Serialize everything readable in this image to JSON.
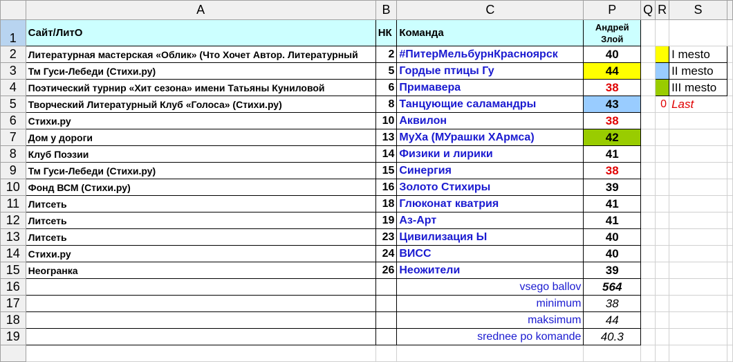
{
  "columns": [
    "",
    "A",
    "B",
    "C",
    "P",
    "Q",
    "R",
    "S",
    ""
  ],
  "header": {
    "row": "1",
    "site": "Сайт/ЛитО",
    "nk": "НК",
    "team": "Команда",
    "judge_line1": "Андрей",
    "judge_line2": "Злой"
  },
  "colors": {
    "header_fill": "#ccffff",
    "first": "#ffff00",
    "second": "#99ccff",
    "third": "#99cc00",
    "low": "#e00000",
    "team_text": "#1a1ad0"
  },
  "rows": [
    {
      "n": "2",
      "site": "Литературная мастерская «Облик» (Что Хочет Автор. Литературный",
      "nk": "2",
      "team": "#ПитерМельбурнКрасноярск",
      "score": "40",
      "fill": "",
      "low": false
    },
    {
      "n": "3",
      "site": "Тм Гуси-Лебеди (Стихи.ру)",
      "nk": "5",
      "team": "Гордые птицы Гу",
      "score": "44",
      "fill": "first",
      "low": false
    },
    {
      "n": "4",
      "site": "Поэтический турнир «Хит сезона» имени Татьяны Куниловой",
      "nk": "6",
      "team": "Примавера",
      "score": "38",
      "fill": "",
      "low": true
    },
    {
      "n": "5",
      "site": "Творческий Литературный Клуб «Голоса» (Стихи.ру)",
      "nk": "8",
      "team": "Танцующие саламандры",
      "score": "43",
      "fill": "second",
      "low": false
    },
    {
      "n": "6",
      "site": "Стихи.ру",
      "nk": "10",
      "team": "Аквилон",
      "score": "38",
      "fill": "",
      "low": true
    },
    {
      "n": "7",
      "site": "Дом у дороги",
      "nk": "13",
      "team": "МуХа (МУрашки ХАрмса)",
      "score": "42",
      "fill": "third",
      "low": false
    },
    {
      "n": "8",
      "site": "Клуб Поэзии",
      "nk": "14",
      "team": "Физики и лирики",
      "score": "41",
      "fill": "",
      "low": false
    },
    {
      "n": "9",
      "site": "Тм Гуси-Лебеди (Стихи.ру)",
      "nk": "15",
      "team": "Синергия",
      "score": "38",
      "fill": "",
      "low": true
    },
    {
      "n": "10",
      "site": "Фонд ВСМ (Стихи.ру)",
      "nk": "16",
      "team": "Золото Стихиры",
      "score": "39",
      "fill": "",
      "low": false
    },
    {
      "n": "11",
      "site": "Литсеть",
      "nk": "18",
      "team": "Глюконат кватрия",
      "score": "41",
      "fill": "",
      "low": false
    },
    {
      "n": "12",
      "site": "Литсеть",
      "nk": "19",
      "team": "Аз-Арт",
      "score": "41",
      "fill": "",
      "low": false
    },
    {
      "n": "13",
      "site": "Литсеть",
      "nk": "23",
      "team": "Цивилизация Ы",
      "score": "40",
      "fill": "",
      "low": false
    },
    {
      "n": "14",
      "site": "Стихи.ру",
      "nk": "24",
      "team": "ВИСС",
      "score": "40",
      "fill": "",
      "low": false
    },
    {
      "n": "15",
      "site": "Неогранка",
      "nk": "26",
      "team": "Неожители",
      "score": "39",
      "fill": "",
      "low": false
    }
  ],
  "stats": [
    {
      "n": "16",
      "label": "vsego ballov",
      "value": "564",
      "bold": true
    },
    {
      "n": "17",
      "label": "minimum",
      "value": "38",
      "bold": false
    },
    {
      "n": "18",
      "label": "maksimum",
      "value": "44",
      "bold": false
    },
    {
      "n": "19",
      "label": "srednee po komande",
      "value": "40.3",
      "bold": false
    }
  ],
  "legend": [
    {
      "fill": "first",
      "text": "I mesto"
    },
    {
      "fill": "second",
      "text": "II mesto"
    },
    {
      "fill": "third",
      "text": "III mesto"
    },
    {
      "fill": "",
      "count": "0",
      "text": "Last"
    }
  ]
}
